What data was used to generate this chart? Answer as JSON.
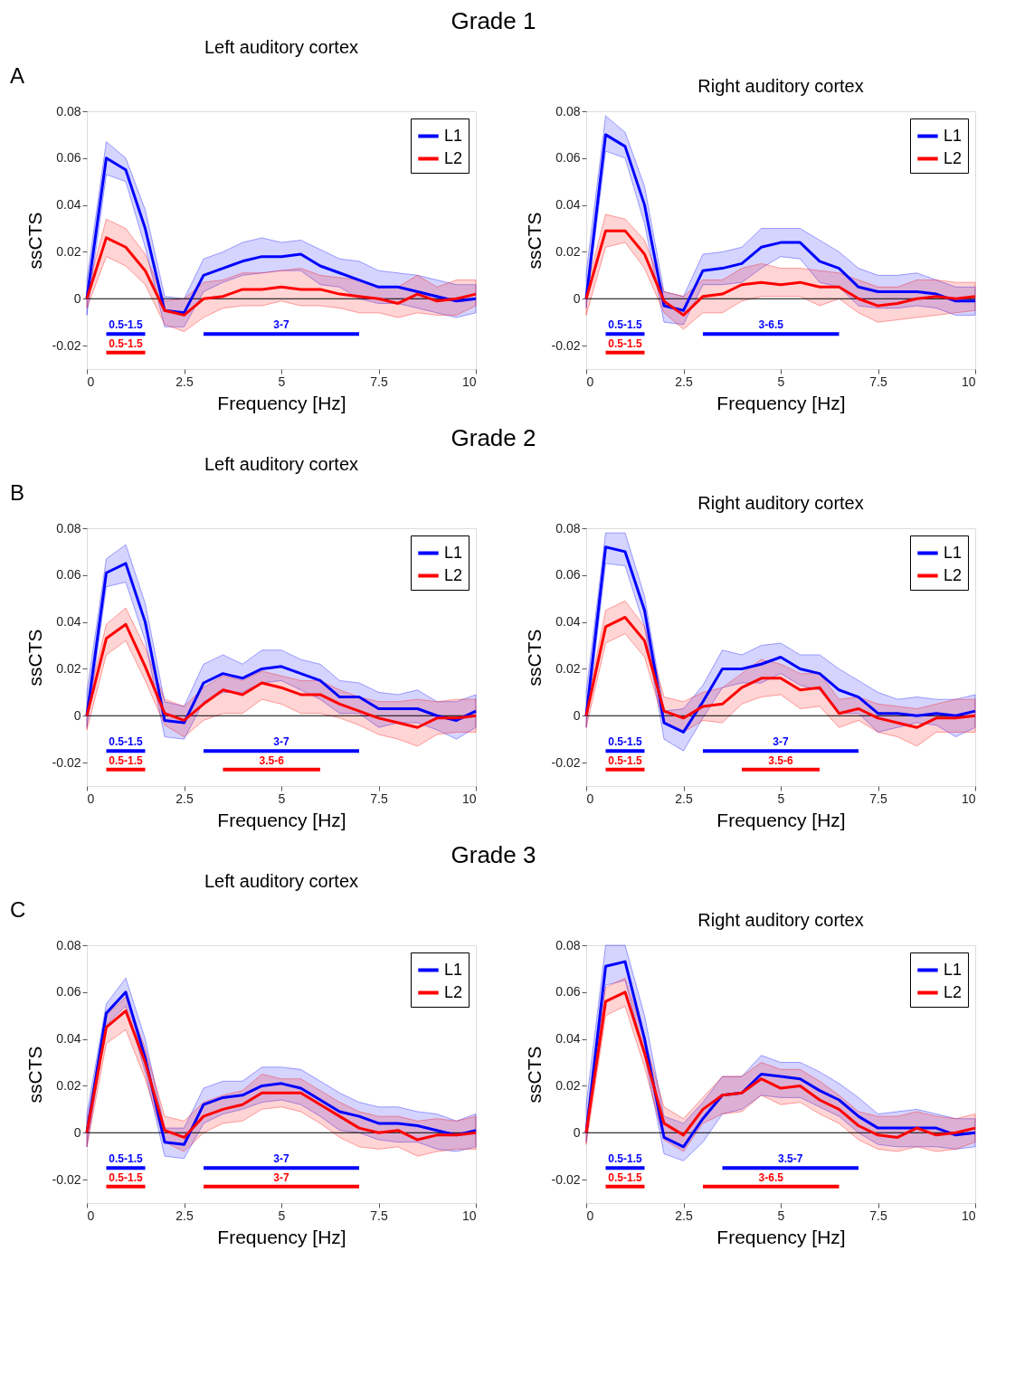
{
  "chart_data": [
    {
      "type": "line",
      "title": "Left auditory cortex",
      "xlabel": "Frequency [Hz]",
      "ylabel": "ssCTS",
      "annotations": [
        "A",
        "Grade 1",
        {
          "text": "0.5-1.5",
          "x": 1,
          "y": -0.015
        },
        {
          "text": "0.5-1.5",
          "x": 1,
          "y": -0.023
        },
        {
          "text": "3-7",
          "x": 5,
          "y": -0.015
        }
      ],
      "x": [
        0,
        0.5,
        1,
        1.5,
        2,
        2.5,
        3,
        3.5,
        4,
        4.5,
        5,
        5.5,
        6,
        6.5,
        7,
        7.5,
        8,
        8.5,
        9,
        9.5,
        10
      ],
      "xlim": [
        0,
        10
      ],
      "xticks": [
        0,
        2.5,
        5,
        7.5,
        10
      ],
      "ylim": [
        -0.03,
        0.08
      ],
      "yticks": [
        -0.02,
        0,
        0.02,
        0.04,
        0.06,
        0.08
      ],
      "legend": "top right",
      "grid": false,
      "ref_lines": [
        {
          "axis": "y",
          "value": 0,
          "color": "#000000"
        }
      ],
      "series": [
        {
          "name": "L1",
          "color": "#0000ff",
          "values": [
            0,
            0.06,
            0.055,
            0.03,
            -0.005,
            -0.006,
            0.01,
            0.013,
            0.016,
            0.018,
            0.018,
            0.019,
            0.014,
            0.011,
            0.008,
            0.005,
            0.005,
            0.003,
            0.001,
            -0.001,
            0
          ],
          "lower": [
            -0.007,
            0.053,
            0.05,
            0.022,
            -0.012,
            -0.012,
            0.003,
            0.007,
            0.01,
            0.011,
            0.012,
            0.012,
            0.006,
            0.005,
            0.0,
            -0.002,
            -0.002,
            -0.004,
            -0.006,
            -0.008,
            -0.006
          ],
          "upper": [
            0.008,
            0.067,
            0.06,
            0.038,
            0.001,
            0,
            0.017,
            0.02,
            0.024,
            0.026,
            0.024,
            0.025,
            0.021,
            0.017,
            0.016,
            0.012,
            0.011,
            0.01,
            0.008,
            0.006,
            0.006
          ]
        },
        {
          "name": "L2",
          "color": "#ff0000",
          "values": [
            0,
            0.026,
            0.022,
            0.012,
            -0.005,
            -0.007,
            0,
            0.001,
            0.004,
            0.004,
            0.005,
            0.004,
            0.004,
            0.002,
            0.001,
            0,
            -0.002,
            0.002,
            -0.001,
            0,
            0.002
          ],
          "lower": [
            -0.004,
            0.018,
            0.014,
            0.006,
            -0.011,
            -0.014,
            -0.008,
            -0.004,
            -0.003,
            -0.003,
            -0.001,
            -0.003,
            -0.003,
            -0.004,
            -0.006,
            -0.006,
            -0.008,
            -0.006,
            -0.007,
            -0.007,
            -0.003
          ],
          "upper": [
            0.003,
            0.034,
            0.03,
            0.019,
            -0.001,
            0,
            0.007,
            0.008,
            0.011,
            0.011,
            0.012,
            0.013,
            0.01,
            0.009,
            0.008,
            0.005,
            0.005,
            0.01,
            0.005,
            0.008,
            0.008
          ]
        },
        {
          "type": "line",
          "color": "#0000ff",
          "x": [
            0.5,
            1.5
          ],
          "values": [
            -0.015,
            -0.015
          ]
        },
        {
          "type": "line",
          "color": "#ff0000",
          "x": [
            0.5,
            1.5
          ],
          "values": [
            -0.023,
            -0.023
          ]
        },
        {
          "type": "line",
          "color": "#0000ff",
          "x": [
            3,
            7
          ],
          "values": [
            -0.015,
            -0.015
          ]
        }
      ]
    },
    {
      "type": "line",
      "title": "Right auditory cortex",
      "xlabel": "Frequency [Hz]",
      "ylabel": "ssCTS",
      "annotations": [
        {
          "text": "0.5-1.5",
          "x": 1,
          "y": -0.015
        },
        {
          "text": "0.5-1.5",
          "x": 1,
          "y": -0.023
        },
        {
          "text": "3-6.5",
          "x": 4.75,
          "y": -0.015
        }
      ],
      "x": [
        0,
        0.5,
        1,
        1.5,
        2,
        2.5,
        3,
        3.5,
        4,
        4.5,
        5,
        5.5,
        6,
        6.5,
        7,
        7.5,
        8,
        8.5,
        9,
        9.5,
        10
      ],
      "xlim": [
        0,
        10
      ],
      "xticks": [
        0,
        2.5,
        5,
        7.5,
        10
      ],
      "ylim": [
        -0.03,
        0.08
      ],
      "yticks": [
        -0.02,
        0,
        0.02,
        0.04,
        0.06,
        0.08
      ],
      "legend": "top right",
      "grid": false,
      "ref_lines": [
        {
          "axis": "y",
          "value": 0,
          "color": "#000000"
        }
      ],
      "series": [
        {
          "name": "L1",
          "color": "#0000ff",
          "values": [
            0,
            0.07,
            0.065,
            0.04,
            -0.003,
            -0.005,
            0.012,
            0.013,
            0.015,
            0.022,
            0.024,
            0.024,
            0.016,
            0.013,
            0.005,
            0.003,
            0.003,
            0.003,
            0.002,
            -0.001,
            -0.001
          ],
          "lower": [
            -0.004,
            0.063,
            0.06,
            0.032,
            -0.01,
            -0.011,
            0.006,
            0.006,
            0.007,
            0.013,
            0.018,
            0.017,
            0.007,
            0.005,
            -0.003,
            -0.004,
            -0.004,
            -0.003,
            -0.004,
            -0.007,
            -0.007
          ],
          "upper": [
            0.011,
            0.078,
            0.071,
            0.048,
            0.003,
            0.001,
            0.019,
            0.02,
            0.022,
            0.03,
            0.03,
            0.03,
            0.025,
            0.02,
            0.013,
            0.01,
            0.01,
            0.011,
            0.008,
            0.005,
            0.005
          ]
        },
        {
          "name": "L2",
          "color": "#ff0000",
          "values": [
            0,
            0.029,
            0.029,
            0.019,
            -0.001,
            -0.007,
            0.001,
            0.002,
            0.006,
            0.007,
            0.006,
            0.007,
            0.005,
            0.005,
            0.0,
            -0.003,
            -0.002,
            0,
            0.001,
            0,
            0.001
          ],
          "lower": [
            -0.007,
            0.022,
            0.024,
            0.013,
            -0.006,
            -0.013,
            -0.006,
            -0.006,
            -0.001,
            0.001,
            0.001,
            0.001,
            -0.003,
            0,
            -0.006,
            -0.01,
            -0.009,
            -0.008,
            -0.007,
            -0.006,
            -0.005
          ],
          "upper": [
            0.004,
            0.036,
            0.034,
            0.025,
            0.003,
            0.001,
            0.008,
            0.008,
            0.013,
            0.015,
            0.013,
            0.013,
            0.012,
            0.011,
            0.008,
            0.005,
            0.005,
            0.008,
            0.008,
            0.007,
            0.007
          ]
        },
        {
          "type": "line",
          "color": "#0000ff",
          "x": [
            0.5,
            1.5
          ],
          "values": [
            -0.015,
            -0.015
          ]
        },
        {
          "type": "line",
          "color": "#ff0000",
          "x": [
            0.5,
            1.5
          ],
          "values": [
            -0.023,
            -0.023
          ]
        },
        {
          "type": "line",
          "color": "#0000ff",
          "x": [
            3,
            6.5
          ],
          "values": [
            -0.015,
            -0.015
          ]
        }
      ]
    },
    {
      "type": "line",
      "title": "Left auditory cortex",
      "xlabel": "Frequency [Hz]",
      "ylabel": "ssCTS",
      "annotations": [
        "B",
        "Grade 2",
        {
          "text": "0.5-1.5",
          "x": 1,
          "y": -0.015
        },
        {
          "text": "0.5-1.5",
          "x": 1,
          "y": -0.023
        },
        {
          "text": "3-7",
          "x": 5,
          "y": -0.015
        },
        {
          "text": "3.5-6",
          "x": 4.75,
          "y": -0.023
        }
      ],
      "x": [
        0,
        0.5,
        1,
        1.5,
        2,
        2.5,
        3,
        3.5,
        4,
        4.5,
        5,
        5.5,
        6,
        6.5,
        7,
        7.5,
        8,
        8.5,
        9,
        9.5,
        10
      ],
      "xlim": [
        0,
        10
      ],
      "xticks": [
        0,
        2.5,
        5,
        7.5,
        10
      ],
      "ylim": [
        -0.03,
        0.08
      ],
      "yticks": [
        -0.02,
        0,
        0.02,
        0.04,
        0.06,
        0.08
      ],
      "legend": "top right",
      "grid": false,
      "ref_lines": [
        {
          "axis": "y",
          "value": 0,
          "color": "#000000"
        }
      ],
      "series": [
        {
          "name": "L1",
          "color": "#0000ff",
          "values": [
            0,
            0.061,
            0.065,
            0.04,
            -0.002,
            -0.003,
            0.014,
            0.018,
            0.016,
            0.02,
            0.021,
            0.018,
            0.015,
            0.008,
            0.008,
            0.003,
            0.003,
            0.003,
            0,
            -0.002,
            0.002
          ],
          "lower": [
            -0.005,
            0.055,
            0.057,
            0.032,
            -0.009,
            -0.01,
            0.006,
            0.01,
            0.01,
            0.014,
            0.015,
            0.011,
            0.007,
            0.001,
            0.001,
            -0.005,
            -0.003,
            -0.003,
            -0.006,
            -0.01,
            -0.005
          ],
          "upper": [
            0.01,
            0.067,
            0.073,
            0.048,
            0.006,
            0.004,
            0.022,
            0.026,
            0.022,
            0.028,
            0.028,
            0.024,
            0.022,
            0.015,
            0.014,
            0.01,
            0.009,
            0.011,
            0.006,
            0.006,
            0.009
          ]
        },
        {
          "name": "L2",
          "color": "#ff0000",
          "values": [
            0,
            0.033,
            0.039,
            0.021,
            0.001,
            -0.002,
            0.005,
            0.011,
            0.009,
            0.014,
            0.012,
            0.009,
            0.009,
            0.005,
            0.002,
            -0.001,
            -0.003,
            -0.005,
            -0.001,
            -0.001,
            0
          ],
          "lower": [
            -0.006,
            0.026,
            0.032,
            0.015,
            -0.004,
            -0.009,
            -0.002,
            0.001,
            0.001,
            0.007,
            0.005,
            0.001,
            0.001,
            -0.001,
            -0.004,
            -0.008,
            -0.01,
            -0.013,
            -0.008,
            -0.007,
            -0.007
          ],
          "upper": [
            0.004,
            0.039,
            0.046,
            0.029,
            0.007,
            0.004,
            0.012,
            0.017,
            0.015,
            0.019,
            0.017,
            0.015,
            0.015,
            0.011,
            0.008,
            0.006,
            0.006,
            0.007,
            0.006,
            0.007,
            0.007
          ]
        },
        {
          "type": "line",
          "color": "#0000ff",
          "x": [
            0.5,
            1.5
          ],
          "values": [
            -0.015,
            -0.015
          ]
        },
        {
          "type": "line",
          "color": "#ff0000",
          "x": [
            0.5,
            1.5
          ],
          "values": [
            -0.023,
            -0.023
          ]
        },
        {
          "type": "line",
          "color": "#0000ff",
          "x": [
            3,
            7
          ],
          "values": [
            -0.015,
            -0.015
          ]
        },
        {
          "type": "line",
          "color": "#ff0000",
          "x": [
            3.5,
            6
          ],
          "values": [
            -0.023,
            -0.023
          ]
        }
      ]
    },
    {
      "type": "line",
      "title": "Right auditory cortex",
      "xlabel": "Frequency [Hz]",
      "ylabel": "ssCTS",
      "annotations": [
        {
          "text": "0.5-1.5",
          "x": 1,
          "y": -0.015
        },
        {
          "text": "0.5-1.5",
          "x": 1,
          "y": -0.023
        },
        {
          "text": "3-7",
          "x": 5,
          "y": -0.015
        },
        {
          "text": "3.5-6",
          "x": 5,
          "y": -0.023
        }
      ],
      "x": [
        0,
        0.5,
        1,
        1.5,
        2,
        2.5,
        3,
        3.5,
        4,
        4.5,
        5,
        5.5,
        6,
        6.5,
        7,
        7.5,
        8,
        8.5,
        9,
        9.5,
        10
      ],
      "xlim": [
        0,
        10
      ],
      "xticks": [
        0,
        2.5,
        5,
        7.5,
        10
      ],
      "ylim": [
        -0.03,
        0.08
      ],
      "yticks": [
        -0.02,
        0,
        0.02,
        0.04,
        0.06,
        0.08
      ],
      "legend": "top right",
      "grid": false,
      "ref_lines": [
        {
          "axis": "y",
          "value": 0,
          "color": "#000000"
        }
      ],
      "series": [
        {
          "name": "L1",
          "color": "#0000ff",
          "values": [
            0,
            0.072,
            0.07,
            0.045,
            -0.003,
            -0.007,
            0.006,
            0.02,
            0.02,
            0.022,
            0.025,
            0.02,
            0.018,
            0.011,
            0.008,
            0.001,
            0.001,
            0,
            0.001,
            0,
            0.002
          ],
          "lower": [
            -0.005,
            0.065,
            0.064,
            0.038,
            -0.01,
            -0.015,
            -0.001,
            0.012,
            0.014,
            0.014,
            0.018,
            0.013,
            0.011,
            0.001,
            0.001,
            -0.007,
            -0.005,
            -0.003,
            -0.004,
            -0.009,
            -0.005
          ],
          "upper": [
            0.01,
            0.078,
            0.078,
            0.051,
            0.002,
            0.003,
            0.013,
            0.028,
            0.026,
            0.03,
            0.031,
            0.026,
            0.026,
            0.02,
            0.015,
            0.01,
            0.007,
            0.008,
            0.007,
            0.007,
            0.009
          ]
        },
        {
          "name": "L2",
          "color": "#ff0000",
          "values": [
            0,
            0.038,
            0.042,
            0.032,
            0.002,
            -0.001,
            0.004,
            0.005,
            0.012,
            0.016,
            0.016,
            0.011,
            0.012,
            0.001,
            0.003,
            -0.001,
            -0.003,
            -0.005,
            -0.001,
            -0.001,
            0
          ],
          "lower": [
            -0.005,
            0.031,
            0.035,
            0.025,
            -0.003,
            -0.007,
            -0.002,
            -0.003,
            0.005,
            0.008,
            0.009,
            0.003,
            0.004,
            -0.005,
            -0.002,
            -0.007,
            -0.009,
            -0.013,
            -0.007,
            -0.007,
            -0.007
          ],
          "upper": [
            0.003,
            0.045,
            0.049,
            0.038,
            0.008,
            0.006,
            0.01,
            0.012,
            0.018,
            0.024,
            0.022,
            0.018,
            0.018,
            0.007,
            0.008,
            0.005,
            0.004,
            0.003,
            0.005,
            0.007,
            0.007
          ]
        },
        {
          "type": "line",
          "color": "#0000ff",
          "x": [
            0.5,
            1.5
          ],
          "values": [
            -0.015,
            -0.015
          ]
        },
        {
          "type": "line",
          "color": "#ff0000",
          "x": [
            0.5,
            1.5
          ],
          "values": [
            -0.023,
            -0.023
          ]
        },
        {
          "type": "line",
          "color": "#0000ff",
          "x": [
            3,
            7
          ],
          "values": [
            -0.015,
            -0.015
          ]
        },
        {
          "type": "line",
          "color": "#ff0000",
          "x": [
            4,
            6
          ],
          "values": [
            -0.023,
            -0.023
          ]
        }
      ]
    },
    {
      "type": "line",
      "title": "Left auditory cortex",
      "xlabel": "Frequency [Hz]",
      "ylabel": "ssCTS",
      "annotations": [
        "C",
        "Grade 3",
        {
          "text": "0.5-1.5",
          "x": 1,
          "y": -0.015
        },
        {
          "text": "0.5-1.5",
          "x": 1,
          "y": -0.023
        },
        {
          "text": "3-7",
          "x": 5,
          "y": -0.015
        },
        {
          "text": "3-7",
          "x": 5,
          "y": -0.023
        }
      ],
      "x": [
        0,
        0.5,
        1,
        1.5,
        2,
        2.5,
        3,
        3.5,
        4,
        4.5,
        5,
        5.5,
        6,
        6.5,
        7,
        7.5,
        8,
        8.5,
        9,
        9.5,
        10
      ],
      "xlim": [
        0,
        10
      ],
      "xticks": [
        0,
        2.5,
        5,
        7.5,
        10
      ],
      "ylim": [
        -0.03,
        0.08
      ],
      "yticks": [
        -0.02,
        0,
        0.02,
        0.04,
        0.06,
        0.08
      ],
      "legend": "top right",
      "grid": false,
      "ref_lines": [
        {
          "axis": "y",
          "value": 0,
          "color": "#000000"
        }
      ],
      "series": [
        {
          "name": "L1",
          "color": "#0000ff",
          "values": [
            0,
            0.051,
            0.06,
            0.032,
            -0.004,
            -0.005,
            0.012,
            0.015,
            0.016,
            0.02,
            0.021,
            0.019,
            0.014,
            0.009,
            0.007,
            0.004,
            0.004,
            0.003,
            0.001,
            -0.001,
            0.001
          ],
          "lower": [
            -0.006,
            0.046,
            0.054,
            0.026,
            -0.01,
            -0.011,
            0.004,
            0.008,
            0.01,
            0.013,
            0.014,
            0.012,
            0.007,
            0.001,
            0,
            -0.003,
            -0.004,
            -0.004,
            -0.007,
            -0.008,
            -0.006
          ],
          "upper": [
            0.008,
            0.055,
            0.066,
            0.04,
            0.002,
            0.002,
            0.019,
            0.022,
            0.022,
            0.028,
            0.028,
            0.027,
            0.022,
            0.017,
            0.013,
            0.011,
            0.011,
            0.009,
            0.008,
            0.005,
            0.008
          ]
        },
        {
          "name": "L2",
          "color": "#ff0000",
          "values": [
            0,
            0.045,
            0.052,
            0.03,
            0.001,
            -0.002,
            0.007,
            0.01,
            0.012,
            0.017,
            0.017,
            0.017,
            0.012,
            0.007,
            0.002,
            0,
            0.001,
            -0.003,
            -0.001,
            -0.001,
            0
          ],
          "lower": [
            -0.006,
            0.038,
            0.044,
            0.023,
            -0.004,
            -0.008,
            0,
            0.004,
            0.005,
            0.01,
            0.011,
            0.009,
            0.004,
            -0.002,
            -0.006,
            -0.007,
            -0.006,
            -0.01,
            -0.008,
            -0.007,
            -0.007
          ],
          "upper": [
            0.004,
            0.05,
            0.058,
            0.036,
            0.007,
            0.005,
            0.013,
            0.016,
            0.018,
            0.025,
            0.023,
            0.023,
            0.018,
            0.013,
            0.009,
            0.007,
            0.007,
            0.005,
            0.006,
            0.005,
            0.007
          ]
        },
        {
          "type": "line",
          "color": "#0000ff",
          "x": [
            0.5,
            1.5
          ],
          "values": [
            -0.015,
            -0.015
          ]
        },
        {
          "type": "line",
          "color": "#ff0000",
          "x": [
            0.5,
            1.5
          ],
          "values": [
            -0.023,
            -0.023
          ]
        },
        {
          "type": "line",
          "color": "#0000ff",
          "x": [
            3,
            7
          ],
          "values": [
            -0.015,
            -0.015
          ]
        },
        {
          "type": "line",
          "color": "#ff0000",
          "x": [
            3,
            7
          ],
          "values": [
            -0.023,
            -0.023
          ]
        }
      ]
    },
    {
      "type": "line",
      "title": "Right auditory cortex",
      "xlabel": "Frequency [Hz]",
      "ylabel": "ssCTS",
      "annotations": [
        {
          "text": "0.5-1.5",
          "x": 1,
          "y": -0.015
        },
        {
          "text": "0.5-1.5",
          "x": 1,
          "y": -0.023
        },
        {
          "text": "3.5-7",
          "x": 5.25,
          "y": -0.015
        },
        {
          "text": "3-6.5",
          "x": 4.75,
          "y": -0.023
        }
      ],
      "x": [
        0,
        0.5,
        1,
        1.5,
        2,
        2.5,
        3,
        3.5,
        4,
        4.5,
        5,
        5.5,
        6,
        6.5,
        7,
        7.5,
        8,
        8.5,
        9,
        9.5,
        10
      ],
      "xlim": [
        0,
        10
      ],
      "xticks": [
        0,
        2.5,
        5,
        7.5,
        10
      ],
      "ylim": [
        -0.03,
        0.08
      ],
      "yticks": [
        -0.02,
        0,
        0.02,
        0.04,
        0.06,
        0.08
      ],
      "legend": "top right",
      "grid": false,
      "ref_lines": [
        {
          "axis": "y",
          "value": 0,
          "color": "#000000"
        }
      ],
      "series": [
        {
          "name": "L1",
          "color": "#0000ff",
          "values": [
            0,
            0.071,
            0.073,
            0.04,
            -0.002,
            -0.006,
            0.006,
            0.016,
            0.017,
            0.025,
            0.024,
            0.023,
            0.018,
            0.014,
            0.007,
            0.002,
            0.002,
            0.002,
            0.002,
            -0.001,
            0
          ],
          "lower": [
            -0.004,
            0.063,
            0.065,
            0.033,
            -0.009,
            -0.012,
            -0.004,
            0.008,
            0.01,
            0.016,
            0.015,
            0.015,
            0.011,
            0.007,
            0,
            -0.005,
            -0.006,
            -0.006,
            -0.006,
            -0.007,
            -0.006
          ],
          "upper": [
            0.012,
            0.08,
            0.08,
            0.05,
            0.007,
            0.004,
            0.013,
            0.024,
            0.024,
            0.033,
            0.03,
            0.03,
            0.026,
            0.021,
            0.015,
            0.008,
            0.009,
            0.01,
            0.008,
            0.006,
            0.006
          ]
        },
        {
          "name": "L2",
          "color": "#ff0000",
          "values": [
            0,
            0.056,
            0.06,
            0.034,
            0.004,
            -0.001,
            0.01,
            0.016,
            0.017,
            0.023,
            0.019,
            0.02,
            0.014,
            0.01,
            0.003,
            -0.001,
            -0.002,
            0.002,
            -0.001,
            0,
            0.002
          ],
          "lower": [
            -0.005,
            0.05,
            0.054,
            0.028,
            -0.003,
            -0.008,
            0.004,
            0.008,
            0.009,
            0.016,
            0.012,
            0.013,
            0.008,
            0.004,
            -0.003,
            -0.007,
            -0.008,
            -0.006,
            -0.008,
            -0.007,
            -0.004
          ],
          "upper": [
            0.004,
            0.062,
            0.066,
            0.04,
            0.011,
            0.006,
            0.015,
            0.024,
            0.024,
            0.03,
            0.027,
            0.027,
            0.022,
            0.016,
            0.009,
            0.007,
            0.007,
            0.009,
            0.007,
            0.006,
            0.008
          ]
        },
        {
          "type": "line",
          "color": "#0000ff",
          "x": [
            0.5,
            1.5
          ],
          "values": [
            -0.015,
            -0.015
          ]
        },
        {
          "type": "line",
          "color": "#ff0000",
          "x": [
            0.5,
            1.5
          ],
          "values": [
            -0.023,
            -0.023
          ]
        },
        {
          "type": "line",
          "color": "#0000ff",
          "x": [
            3.5,
            7
          ],
          "values": [
            -0.015,
            -0.015
          ]
        },
        {
          "type": "line",
          "color": "#ff0000",
          "x": [
            3,
            6.5
          ],
          "values": [
            -0.023,
            -0.023
          ]
        }
      ]
    }
  ]
}
